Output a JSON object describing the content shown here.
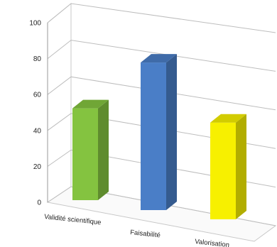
{
  "chart_data": {
    "type": "bar",
    "projection": "3d-perspective",
    "categories": [
      "Validité scientifique",
      "Faisabilité",
      "Valorisation"
    ],
    "values": [
      56,
      90,
      59
    ],
    "colors": [
      "#84c340",
      "#4a7ec7",
      "#f7f000"
    ],
    "ylim": [
      0,
      100
    ],
    "yticks": [
      0,
      20,
      40,
      60,
      80,
      100
    ],
    "grid": true,
    "legend": "none",
    "title": "",
    "xlabel": "",
    "ylabel": ""
  }
}
